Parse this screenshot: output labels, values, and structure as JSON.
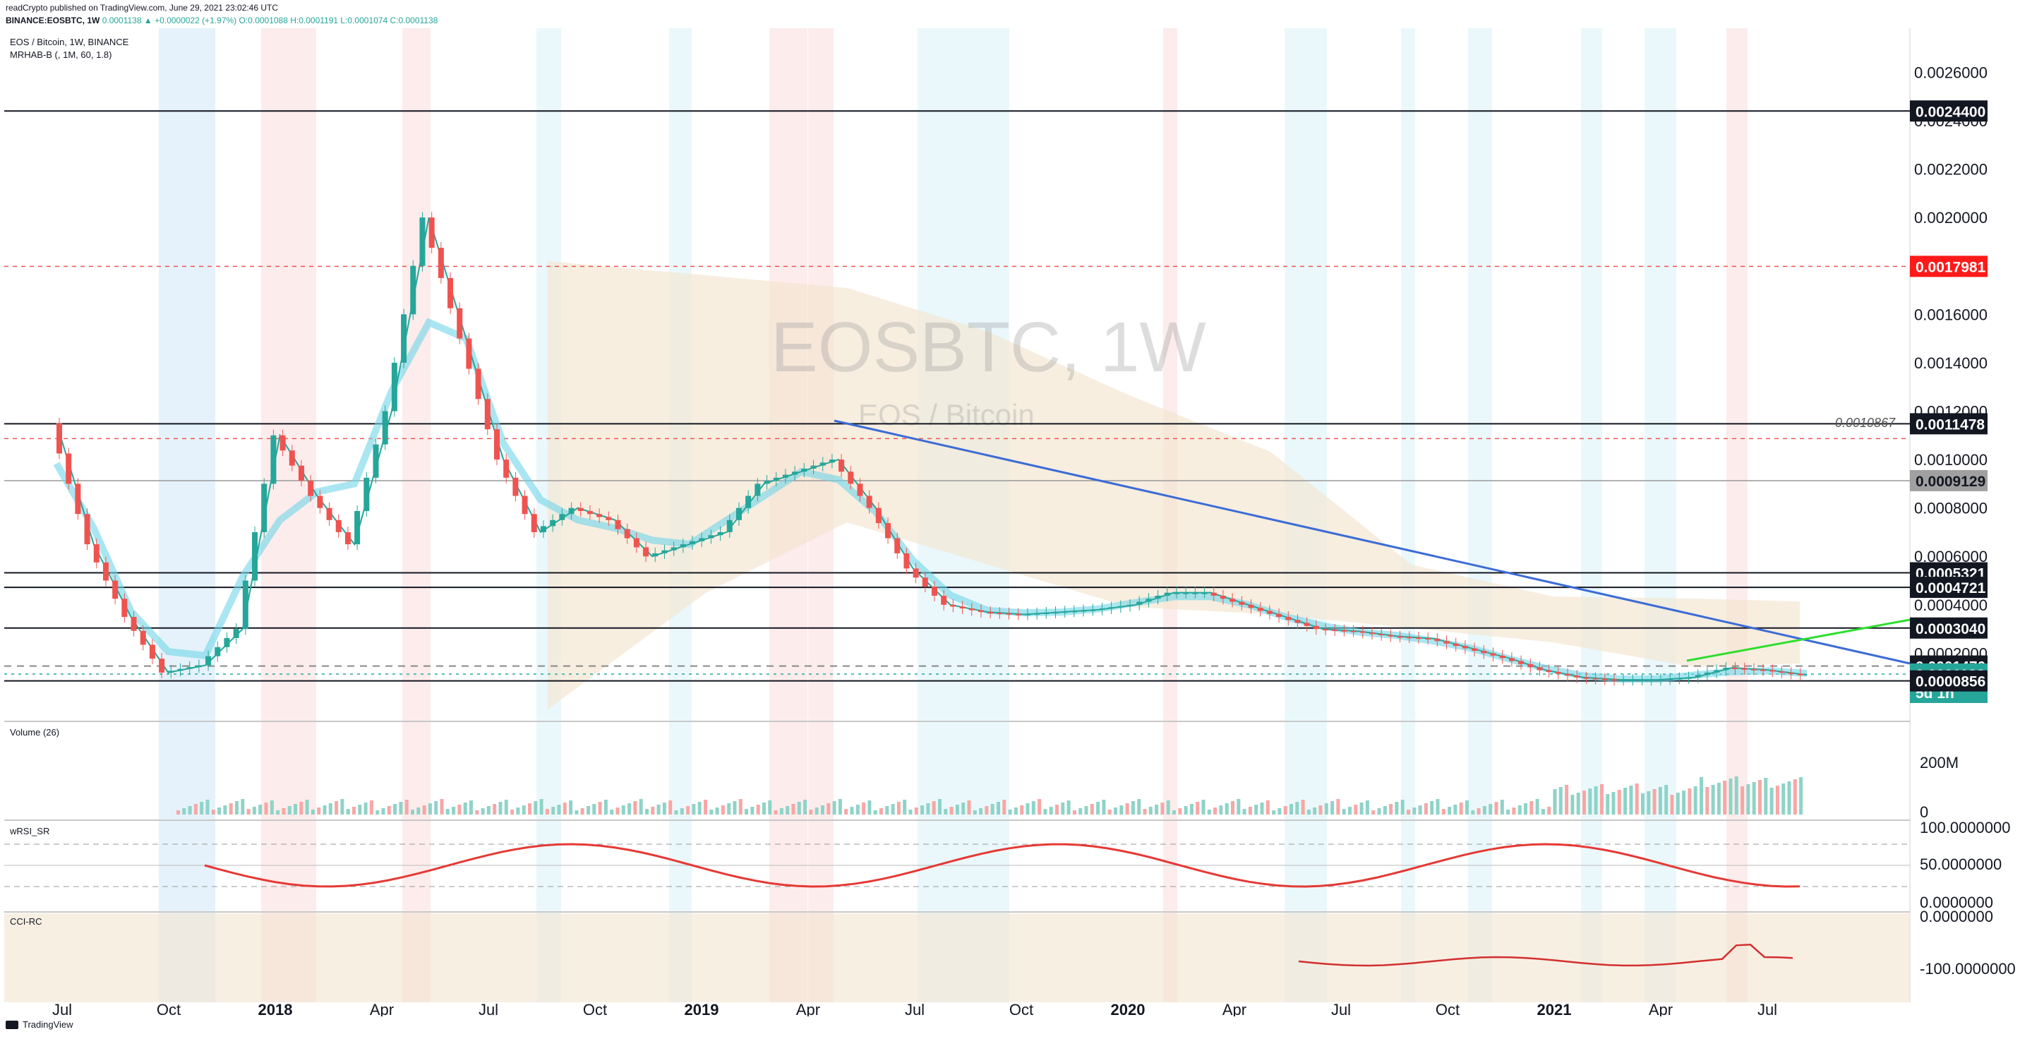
{
  "header": {
    "published": "readCrypto published on TradingView.com, June 29, 2021 23:02:46 UTC",
    "symbol": "BINANCE:EOSBTC, 1W",
    "change": "0.0001138 ▲ +0.0000022 (+1.97%)",
    "ohlc": "O:0.0001088 H:0.0001191 L:0.0001074 C:0.0001138"
  },
  "legend": {
    "pair": "EOS / Bitcoin, 1W, BINANCE",
    "indicator": "MRHAB-B (, 1M, 60, 1.8)"
  },
  "watermark": {
    "ticker": "EOSBTC, 1W",
    "name": "EOS / Bitcoin"
  },
  "footer": {
    "brand": "TradingView"
  },
  "colors": {
    "up": "#26a69a",
    "down": "#ef5350",
    "cyan": "#00bcd4",
    "blue": "#2962ff",
    "orange": "#f7a23b",
    "brown": "#8b1a1a",
    "green": "#00e600",
    "red": "#f44336",
    "band": "#f3e5d0"
  },
  "chart_data": {
    "type": "line",
    "title": "EOSBTC, 1W",
    "subtitle": "EOS / Bitcoin",
    "xlabel": "",
    "ylabel": "",
    "ylim": [
      0.0,
      0.0027
    ],
    "x_ticks": [
      "Jul",
      "Oct",
      "2018",
      "Apr",
      "Jul",
      "Oct",
      "2019",
      "Apr",
      "Jul",
      "Oct",
      "2020",
      "Apr",
      "Jul",
      "Oct",
      "2021",
      "Apr",
      "Jul"
    ],
    "y_ticks": [
      "0.0026000",
      "0.0024000",
      "0.0022000",
      "0.0020000",
      "0.0018000",
      "0.0016000",
      "0.0014000",
      "0.0012000",
      "0.0010000",
      "0.0008000",
      "0.0006000",
      "0.0004000",
      "0.0002000"
    ],
    "grid": false,
    "series": [
      {
        "name": "",
        "x": [
          "2017-07",
          "2017-08",
          "2017-09",
          "2017-10",
          "2017-11",
          "2017-12",
          "2018-01",
          "2018-02",
          "2018-03",
          "2018-04",
          "2018-05",
          "2018-06",
          "2018-07",
          "2018-08",
          "2018-09",
          "2018-10",
          "2018-11",
          "2018-12",
          "2019-01",
          "2019-02",
          "2019-03",
          "2019-04",
          "2019-05",
          "2019-06",
          "2019-07",
          "2019-08",
          "2019-09",
          "2019-10",
          "2019-11",
          "2019-12",
          "2020-01",
          "2020-02",
          "2020-03",
          "2020-04",
          "2020-05",
          "2020-06",
          "2020-07",
          "2020-08",
          "2020-09",
          "2020-10",
          "2020-11",
          "2020-12",
          "2021-01",
          "2021-02",
          "2021-03",
          "2021-04",
          "2021-05",
          "2021-06"
        ],
        "values": [
          0.00115,
          0.00065,
          0.00035,
          0.00012,
          0.00015,
          0.0003,
          0.0011,
          0.00085,
          0.00065,
          0.0012,
          0.002,
          0.0015,
          0.001,
          0.0007,
          0.0008,
          0.00075,
          0.0006,
          0.00065,
          0.0007,
          0.0009,
          0.00095,
          0.001,
          0.0008,
          0.00055,
          0.0004,
          0.00037,
          0.00036,
          0.00037,
          0.00038,
          0.0004,
          0.00045,
          0.00045,
          0.0004,
          0.00035,
          0.0003,
          0.00029,
          0.00027,
          0.00026,
          0.00022,
          0.00018,
          0.00013,
          0.0001,
          9e-05,
          9e-05,
          0.0001,
          0.00014,
          0.00013,
          0.00011
        ]
      }
    ],
    "price_tags": [
      {
        "value": 0.00244,
        "label": "0.0024400",
        "style": "black"
      },
      {
        "value": 0.0017981,
        "label": "0.0017981",
        "style": "red"
      },
      {
        "value": 0.0011478,
        "label": "0.0011478",
        "style": "black"
      },
      {
        "value": 0.0009129,
        "label": "0.0009129",
        "style": "gray"
      },
      {
        "value": 0.0005321,
        "label": "0.0005321",
        "style": "black"
      },
      {
        "value": 0.0004721,
        "label": "0.0004721",
        "style": "black"
      },
      {
        "value": 0.000304,
        "label": "0.0003040",
        "style": "black"
      },
      {
        "value": 0.000147,
        "label": "0.0001470",
        "style": "black"
      },
      {
        "value": 0.0001138,
        "label": "0.0001138",
        "style": "teal"
      },
      {
        "value": 8.56e-05,
        "label": "0.0000856",
        "style": "black"
      }
    ],
    "countdown": "5d 1h",
    "annotation": "0.0010867",
    "volume": {
      "title": "Volume (26)",
      "y_ticks": [
        "200M",
        "0"
      ]
    },
    "wrsi": {
      "title": "wRSI_SR",
      "y_ticks": [
        "100.0000000",
        "50.0000000",
        "0.0000000"
      ]
    },
    "cci": {
      "title": "CCI-RC",
      "y_ticks": [
        "0.0000000",
        "-100.0000000"
      ]
    }
  }
}
